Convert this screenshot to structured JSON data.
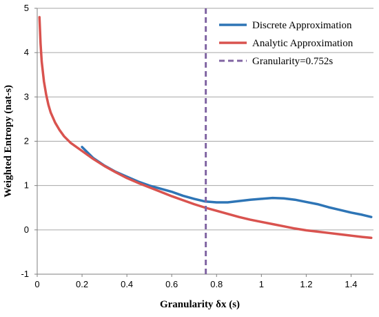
{
  "chart_data": {
    "type": "line",
    "title": "",
    "xlabel": "Granularity δx (s)",
    "ylabel": "Weighted Entropy (nat-s)",
    "xlim": [
      0,
      1.5
    ],
    "ylim": [
      -1,
      5
    ],
    "x_ticks": [
      "0",
      "0.2",
      "0.4",
      "0.6",
      "0.8",
      "1",
      "1.2",
      "1.4"
    ],
    "y_ticks": [
      "-1",
      "0",
      "1",
      "2",
      "3",
      "4",
      "5"
    ],
    "grid": "horizontal",
    "legend_position": "top-right",
    "series": [
      {
        "name": "Discrete Approximation",
        "color": "#2e75b6",
        "style": "solid",
        "x": [
          0.2,
          0.25,
          0.3,
          0.35,
          0.4,
          0.45,
          0.5,
          0.55,
          0.6,
          0.65,
          0.7,
          0.75,
          0.8,
          0.85,
          0.9,
          0.95,
          1.0,
          1.05,
          1.1,
          1.15,
          1.2,
          1.25,
          1.3,
          1.35,
          1.4,
          1.45,
          1.49
        ],
        "y": [
          1.87,
          1.62,
          1.45,
          1.31,
          1.2,
          1.09,
          1.0,
          0.93,
          0.86,
          0.77,
          0.7,
          0.64,
          0.62,
          0.62,
          0.65,
          0.68,
          0.7,
          0.72,
          0.71,
          0.68,
          0.63,
          0.58,
          0.51,
          0.45,
          0.39,
          0.34,
          0.29
        ]
      },
      {
        "name": "Analytic Approximation",
        "color": "#d9534f",
        "style": "solid",
        "x": [
          0.01,
          0.015,
          0.02,
          0.03,
          0.04,
          0.05,
          0.06,
          0.08,
          0.1,
          0.12,
          0.15,
          0.2,
          0.25,
          0.3,
          0.35,
          0.4,
          0.45,
          0.5,
          0.55,
          0.6,
          0.65,
          0.7,
          0.75,
          0.8,
          0.85,
          0.9,
          0.95,
          1.0,
          1.05,
          1.1,
          1.15,
          1.2,
          1.25,
          1.3,
          1.35,
          1.4,
          1.45,
          1.49
        ],
        "y": [
          4.8,
          4.2,
          3.8,
          3.35,
          3.05,
          2.82,
          2.65,
          2.42,
          2.25,
          2.11,
          1.96,
          1.78,
          1.6,
          1.44,
          1.3,
          1.17,
          1.06,
          0.96,
          0.86,
          0.76,
          0.67,
          0.58,
          0.5,
          0.43,
          0.36,
          0.29,
          0.23,
          0.18,
          0.13,
          0.08,
          0.03,
          -0.01,
          -0.04,
          -0.07,
          -0.1,
          -0.13,
          -0.16,
          -0.18
        ]
      },
      {
        "name": "Granularity=0.752s",
        "color": "#8064a2",
        "style": "dashed",
        "x": [
          0.752,
          0.752
        ],
        "y": [
          -1,
          5
        ]
      }
    ]
  }
}
